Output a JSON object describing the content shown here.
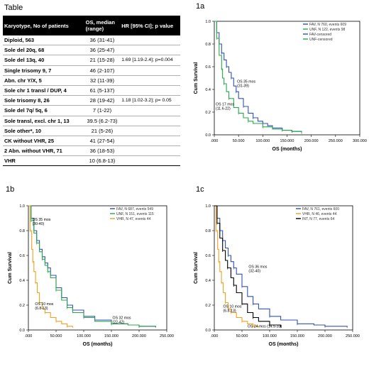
{
  "table": {
    "label": "Table",
    "headers": [
      "Karyotype, No of patients",
      "OS, median (range)",
      "HR [95% CI]; p value"
    ],
    "rows": [
      {
        "k": "Diploid, 563",
        "os": "36 (31-41)",
        "hr": ""
      },
      {
        "k": "Sole del 20q, 68",
        "os": "36 (25-47)",
        "hr": ""
      },
      {
        "k": "Sole del 13q, 40",
        "os": "21 (15-28)",
        "hr": "1.69 [1.19-2.4]; p=0.004"
      },
      {
        "k": "Single trisomy 9, 7",
        "os": "46 (2-107)",
        "hr": ""
      },
      {
        "k": "Abn. chr Y/X, 5",
        "os": "32 (11-39)",
        "hr": ""
      },
      {
        "k": "Sole chr 1 transl / DUP, 4",
        "os": "61 (5-137)",
        "hr": ""
      },
      {
        "k": "Sole trisomy 8, 26",
        "os": "28 (19-42)",
        "hr": "1.18 [1.02-3.2]; p= 0.05"
      },
      {
        "k": "Sole del 7q/ 5q, 6",
        "os": "7 (1-22)",
        "hr": ""
      },
      {
        "k": "Sole transl, excl. chr 1, 13",
        "os": "39.5 (6.2-73)",
        "hr": ""
      },
      {
        "k": "Sole other*, 10",
        "os": "21 (5-26)",
        "hr": ""
      },
      {
        "k": "CK without VHR, 25",
        "os": "41 (27-54)",
        "hr": ""
      },
      {
        "k": "2 Abn. without VHR, 71",
        "os": "36 (18-53)",
        "hr": ""
      },
      {
        "k": "VHR",
        "os": "10 (6.8-13)",
        "hr": ""
      }
    ]
  },
  "chart_data": [
    {
      "panel": "1a",
      "type": "line",
      "xlabel": "OS (months)",
      "ylabel": "Cum Survival",
      "xticks": [
        ".000",
        "50.000",
        "100.000",
        "150.000",
        "200.000",
        "250.000",
        "300.000"
      ],
      "xlim": [
        0,
        300
      ],
      "ylim": [
        0,
        1
      ],
      "yticks": [
        "0.0",
        "0.2",
        "0.4",
        "0.6",
        "0.8",
        "1.0"
      ],
      "legend": {
        "placement": "top-right",
        "entries": [
          {
            "name": "FAV, N 760, events 609",
            "color": "#3050b8"
          },
          {
            "name": "UNF, N 122, events 98",
            "color": "#2aa84a"
          },
          {
            "name": "FAV-censored",
            "color": "#3050b8"
          },
          {
            "name": "UNF-censored",
            "color": "#2aa84a"
          }
        ]
      },
      "series": [
        {
          "color": "#3050b8",
          "x": [
            0,
            5,
            10,
            15,
            20,
            25,
            30,
            35,
            40,
            45,
            50,
            60,
            70,
            80,
            90,
            100,
            110,
            120,
            140,
            160,
            180
          ],
          "y": [
            1,
            0.9,
            0.8,
            0.72,
            0.66,
            0.6,
            0.55,
            0.5,
            0.43,
            0.38,
            0.32,
            0.25,
            0.19,
            0.15,
            0.12,
            0.1,
            0.08,
            0.06,
            0.04,
            0.03,
            0.02
          ]
        },
        {
          "color": "#2aa84a",
          "x": [
            0,
            5,
            10,
            15,
            17,
            20,
            25,
            30,
            40,
            50,
            60,
            70,
            80,
            100,
            120,
            140,
            160,
            180
          ],
          "y": [
            1,
            0.85,
            0.7,
            0.58,
            0.5,
            0.45,
            0.38,
            0.32,
            0.24,
            0.19,
            0.15,
            0.12,
            0.1,
            0.07,
            0.05,
            0.04,
            0.03,
            0.02
          ]
        }
      ],
      "annotations": [
        {
          "text": [
            "OS 35 mos",
            "(31-39)"
          ],
          "x": 47,
          "y": 0.46
        },
        {
          "text": [
            "OS 17 mos",
            "(11.6-22)"
          ],
          "x": 3,
          "y": 0.26
        }
      ]
    },
    {
      "panel": "1b",
      "type": "line",
      "xlabel": "OS (months)",
      "ylabel": "Cum Survival",
      "xticks": [
        ".000",
        "50.000",
        "100.000",
        "150.000",
        "200.000",
        "250.000"
      ],
      "xlim": [
        0,
        250
      ],
      "ylim": [
        0,
        1
      ],
      "yticks": [
        "0.0",
        "0.2",
        "0.4",
        "0.6",
        "0.8",
        "1.0"
      ],
      "legend": {
        "placement": "top-right",
        "entries": [
          {
            "name": "FAV, N 687, events 549",
            "color": "#3050b8"
          },
          {
            "name": "UNF, N 151, events 115",
            "color": "#2aa84a"
          },
          {
            "name": "VHR, N 47, events 44",
            "color": "#f0a020"
          }
        ]
      },
      "series": [
        {
          "color": "#3050b8",
          "x": [
            0,
            5,
            10,
            15,
            20,
            25,
            30,
            35,
            40,
            50,
            60,
            70,
            80,
            100,
            120,
            150,
            180,
            200,
            230
          ],
          "y": [
            1,
            0.9,
            0.8,
            0.72,
            0.65,
            0.59,
            0.54,
            0.5,
            0.44,
            0.34,
            0.26,
            0.2,
            0.16,
            0.11,
            0.08,
            0.05,
            0.04,
            0.03,
            0.02
          ]
        },
        {
          "color": "#2aa84a",
          "x": [
            0,
            5,
            10,
            15,
            20,
            25,
            30,
            35,
            40,
            50,
            60,
            70,
            80,
            100,
            120,
            150,
            180,
            200,
            230
          ],
          "y": [
            1,
            0.88,
            0.78,
            0.7,
            0.63,
            0.57,
            0.52,
            0.47,
            0.42,
            0.32,
            0.24,
            0.18,
            0.14,
            0.1,
            0.07,
            0.05,
            0.04,
            0.03,
            0.02
          ]
        },
        {
          "color": "#f0a020",
          "x": [
            0,
            3,
            6,
            8,
            10,
            13,
            16,
            20,
            25,
            30,
            40,
            50,
            60,
            70,
            80
          ],
          "y": [
            1,
            0.8,
            0.65,
            0.55,
            0.47,
            0.38,
            0.3,
            0.22,
            0.17,
            0.14,
            0.1,
            0.07,
            0.05,
            0.03,
            0.02
          ]
        }
      ],
      "annotations": [
        {
          "text": [
            "OS 35 mos",
            "(30-40)"
          ],
          "x": 7,
          "y": 0.88
        },
        {
          "text": [
            "OS 10 mos",
            "(6.8-13)"
          ],
          "x": 12,
          "y": 0.2
        },
        {
          "text": [
            "OS 32 mos",
            "(22-42)"
          ],
          "x": 152,
          "y": 0.09
        }
      ]
    },
    {
      "panel": "1c",
      "type": "line",
      "xlabel": "OS (months)",
      "ylabel": "Cum Survival",
      "xticks": [
        ".000",
        "50.000",
        "100.000",
        "150.000",
        "200.000",
        "250.000"
      ],
      "xlim": [
        0,
        250
      ],
      "ylim": [
        0,
        1
      ],
      "yticks": [
        "0.0",
        "0.2",
        "0.4",
        "0.6",
        "0.8",
        "1.0"
      ],
      "legend": {
        "placement": "top-right",
        "entries": [
          {
            "name": "FAV, N 761, events 600",
            "color": "#3050b8"
          },
          {
            "name": "VHR, N 46, events 44",
            "color": "#f0a020"
          },
          {
            "name": "INT, N 77, events 64",
            "color": "#000000"
          }
        ]
      },
      "series": [
        {
          "color": "#3050b8",
          "x": [
            0,
            5,
            10,
            15,
            20,
            25,
            30,
            35,
            40,
            50,
            60,
            70,
            80,
            100,
            120,
            150,
            180,
            200,
            240
          ],
          "y": [
            1,
            0.9,
            0.8,
            0.72,
            0.66,
            0.6,
            0.55,
            0.5,
            0.45,
            0.35,
            0.27,
            0.21,
            0.17,
            0.11,
            0.08,
            0.05,
            0.04,
            0.03,
            0.02
          ]
        },
        {
          "color": "#f0a020",
          "x": [
            0,
            3,
            6,
            8,
            10,
            13,
            16,
            20,
            25,
            30,
            40,
            50,
            60,
            70,
            80
          ],
          "y": [
            1,
            0.8,
            0.65,
            0.55,
            0.47,
            0.38,
            0.3,
            0.22,
            0.17,
            0.14,
            0.1,
            0.07,
            0.05,
            0.03,
            0.02
          ]
        },
        {
          "color": "#000000",
          "x": [
            0,
            5,
            10,
            15,
            20,
            24,
            30,
            35,
            40,
            50,
            60,
            70,
            80,
            100,
            120
          ],
          "y": [
            1,
            0.86,
            0.74,
            0.64,
            0.56,
            0.5,
            0.42,
            0.36,
            0.3,
            0.21,
            0.14,
            0.1,
            0.07,
            0.04,
            0.02
          ]
        }
      ],
      "annotations": [
        {
          "text": [
            "OS 36 mos",
            "(32-40)"
          ],
          "x": 62,
          "y": 0.5
        },
        {
          "text": [
            "OS 10 mos",
            "(6.8-13)"
          ],
          "x": 16,
          "y": 0.18
        },
        {
          "text": [
            "OS 24 mos (14.5-33)"
          ],
          "x": 60,
          "y": 0.02
        }
      ]
    }
  ]
}
